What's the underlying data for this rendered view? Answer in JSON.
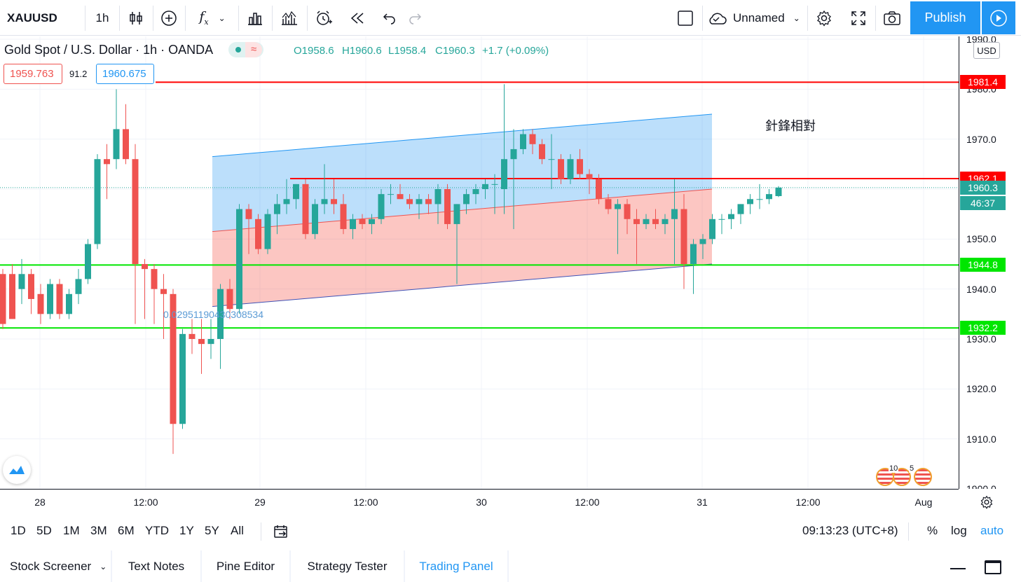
{
  "toolbar": {
    "symbol": "XAUUSD",
    "interval": "1h",
    "layout_name": "Unnamed",
    "publish_label": "Publish"
  },
  "legend": {
    "title": "Gold Spot / U.S. Dollar · 1h · OANDA",
    "open": "O1958.6",
    "high": "H1960.6",
    "low": "L1958.4",
    "close": "C1960.3",
    "change": "+1.7 (+0.09%)"
  },
  "order": {
    "sell_price": "1959.763",
    "spread": "91.2",
    "buy_price": "1960.675"
  },
  "annotations": {
    "chinese_note": "針鋒相對",
    "channel_label": "0.02951190430308534"
  },
  "colors": {
    "up": "#26a69a",
    "down": "#ef5350",
    "resistance": "#ff0000",
    "support": "#00e600",
    "accent": "#2196f3"
  },
  "chart_data": {
    "type": "candlestick",
    "y_range": [
      1900,
      1990
    ],
    "y_ticks": [
      "1990.0",
      "1980.0",
      "1970.0",
      "1960.0",
      "1950.0",
      "1940.0",
      "1930.0",
      "1920.0",
      "1910.0",
      "1900.0"
    ],
    "x_ticks": [
      "28",
      "12:00",
      "29",
      "12:00",
      "30",
      "12:00",
      "31",
      "12:00",
      "Aug"
    ],
    "horizontal_lines": [
      {
        "price": 1981.4,
        "label": "1981.4",
        "color": "#ff0000"
      },
      {
        "price": 1962.1,
        "label": "1962.1",
        "color": "#ff0000"
      },
      {
        "price": 1944.8,
        "label": "1944.8",
        "color": "#00e600"
      },
      {
        "price": 1932.2,
        "label": "1932.2",
        "color": "#00e600"
      }
    ],
    "current_price": {
      "label": "1960.3",
      "countdown": "46:37"
    },
    "candles": [
      {
        "o": 1943,
        "h": 1944,
        "l": 1932,
        "c": 1933
      },
      {
        "o": 1943,
        "h": 1945,
        "l": 1934,
        "c": 1934
      },
      {
        "o": 1940,
        "h": 1946,
        "l": 1937,
        "c": 1943
      },
      {
        "o": 1943,
        "h": 1944,
        "l": 1935,
        "c": 1938
      },
      {
        "o": 1939,
        "h": 1941,
        "l": 1933,
        "c": 1935
      },
      {
        "o": 1935,
        "h": 1942,
        "l": 1934,
        "c": 1941
      },
      {
        "o": 1941,
        "h": 1942,
        "l": 1934,
        "c": 1935
      },
      {
        "o": 1935,
        "h": 1940,
        "l": 1934,
        "c": 1939
      },
      {
        "o": 1939,
        "h": 1944,
        "l": 1937,
        "c": 1942
      },
      {
        "o": 1942,
        "h": 1950,
        "l": 1941,
        "c": 1949
      },
      {
        "o": 1949,
        "h": 1967,
        "l": 1948,
        "c": 1966
      },
      {
        "o": 1966,
        "h": 1969,
        "l": 1958,
        "c": 1965
      },
      {
        "o": 1966,
        "h": 1980,
        "l": 1964,
        "c": 1972
      },
      {
        "o": 1972,
        "h": 1977,
        "l": 1965,
        "c": 1966
      },
      {
        "o": 1966,
        "h": 1969,
        "l": 1933,
        "c": 1945
      },
      {
        "o": 1945,
        "h": 1946,
        "l": 1934,
        "c": 1944
      },
      {
        "o": 1944,
        "h": 1945,
        "l": 1933,
        "c": 1940
      },
      {
        "o": 1940,
        "h": 1943,
        "l": 1930,
        "c": 1939
      },
      {
        "o": 1939,
        "h": 1940,
        "l": 1907,
        "c": 1913
      },
      {
        "o": 1913,
        "h": 1932,
        "l": 1912,
        "c": 1931
      },
      {
        "o": 1931,
        "h": 1934,
        "l": 1927,
        "c": 1930
      },
      {
        "o": 1930,
        "h": 1934,
        "l": 1923,
        "c": 1929
      },
      {
        "o": 1929,
        "h": 1934,
        "l": 1926,
        "c": 1930
      },
      {
        "o": 1930,
        "h": 1941,
        "l": 1924,
        "c": 1940
      },
      {
        "o": 1940,
        "h": 1942,
        "l": 1934,
        "c": 1936
      },
      {
        "o": 1936,
        "h": 1957,
        "l": 1935,
        "c": 1956
      },
      {
        "o": 1956,
        "h": 1957,
        "l": 1947,
        "c": 1954
      },
      {
        "o": 1954,
        "h": 1955,
        "l": 1947,
        "c": 1948
      },
      {
        "o": 1948,
        "h": 1956,
        "l": 1947,
        "c": 1955
      },
      {
        "o": 1955,
        "h": 1959,
        "l": 1951,
        "c": 1957
      },
      {
        "o": 1957,
        "h": 1962,
        "l": 1955,
        "c": 1958
      },
      {
        "o": 1958,
        "h": 1961,
        "l": 1956,
        "c": 1961
      },
      {
        "o": 1961,
        "h": 1962,
        "l": 1950,
        "c": 1951
      },
      {
        "o": 1951,
        "h": 1958,
        "l": 1950,
        "c": 1957
      },
      {
        "o": 1957,
        "h": 1965,
        "l": 1955,
        "c": 1958
      },
      {
        "o": 1958,
        "h": 1962,
        "l": 1955,
        "c": 1957
      },
      {
        "o": 1957,
        "h": 1959,
        "l": 1951,
        "c": 1952
      },
      {
        "o": 1952,
        "h": 1955,
        "l": 1950,
        "c": 1954
      },
      {
        "o": 1954,
        "h": 1955,
        "l": 1952,
        "c": 1953
      },
      {
        "o": 1953,
        "h": 1955,
        "l": 1951,
        "c": 1954
      },
      {
        "o": 1954,
        "h": 1960,
        "l": 1953,
        "c": 1959
      },
      {
        "o": 1959,
        "h": 1961,
        "l": 1957,
        "c": 1959
      },
      {
        "o": 1959,
        "h": 1961,
        "l": 1958,
        "c": 1958
      },
      {
        "o": 1958,
        "h": 1959,
        "l": 1956,
        "c": 1957
      },
      {
        "o": 1957,
        "h": 1959,
        "l": 1954,
        "c": 1958
      },
      {
        "o": 1958,
        "h": 1959,
        "l": 1955,
        "c": 1957
      },
      {
        "o": 1957,
        "h": 1961,
        "l": 1953,
        "c": 1960
      },
      {
        "o": 1960,
        "h": 1961,
        "l": 1952,
        "c": 1953
      },
      {
        "o": 1953,
        "h": 1957,
        "l": 1941,
        "c": 1957
      },
      {
        "o": 1957,
        "h": 1960,
        "l": 1955,
        "c": 1959
      },
      {
        "o": 1959,
        "h": 1961,
        "l": 1957,
        "c": 1960
      },
      {
        "o": 1960,
        "h": 1962,
        "l": 1958,
        "c": 1961
      },
      {
        "o": 1961,
        "h": 1963,
        "l": 1955,
        "c": 1961
      },
      {
        "o": 1960,
        "h": 1981,
        "l": 1955,
        "c": 1966
      },
      {
        "o": 1966,
        "h": 1972,
        "l": 1952,
        "c": 1968
      },
      {
        "o": 1968,
        "h": 1972,
        "l": 1967,
        "c": 1971
      },
      {
        "o": 1971,
        "h": 1972,
        "l": 1967,
        "c": 1969
      },
      {
        "o": 1969,
        "h": 1970,
        "l": 1965,
        "c": 1966
      },
      {
        "o": 1966,
        "h": 1971,
        "l": 1960,
        "c": 1966
      },
      {
        "o": 1966,
        "h": 1967,
        "l": 1961,
        "c": 1962
      },
      {
        "o": 1962,
        "h": 1967,
        "l": 1961,
        "c": 1966
      },
      {
        "o": 1966,
        "h": 1968,
        "l": 1962,
        "c": 1963
      },
      {
        "o": 1963,
        "h": 1964,
        "l": 1959,
        "c": 1962
      },
      {
        "o": 1962,
        "h": 1963,
        "l": 1957,
        "c": 1958
      },
      {
        "o": 1958,
        "h": 1959,
        "l": 1955,
        "c": 1956
      },
      {
        "o": 1956,
        "h": 1958,
        "l": 1947,
        "c": 1957
      },
      {
        "o": 1957,
        "h": 1958,
        "l": 1951,
        "c": 1954
      },
      {
        "o": 1954,
        "h": 1956,
        "l": 1945,
        "c": 1953
      },
      {
        "o": 1953,
        "h": 1955,
        "l": 1952,
        "c": 1954
      },
      {
        "o": 1954,
        "h": 1956,
        "l": 1952,
        "c": 1953
      },
      {
        "o": 1953,
        "h": 1955,
        "l": 1951,
        "c": 1954
      },
      {
        "o": 1954,
        "h": 1962,
        "l": 1945,
        "c": 1956
      },
      {
        "o": 1956,
        "h": 1959,
        "l": 1940,
        "c": 1945
      },
      {
        "o": 1945,
        "h": 1950,
        "l": 1939,
        "c": 1949
      },
      {
        "o": 1949,
        "h": 1951,
        "l": 1946,
        "c": 1950
      },
      {
        "o": 1950,
        "h": 1955,
        "l": 1949,
        "c": 1954
      },
      {
        "o": 1954,
        "h": 1955,
        "l": 1951,
        "c": 1954
      },
      {
        "o": 1954,
        "h": 1956,
        "l": 1952,
        "c": 1955
      },
      {
        "o": 1955,
        "h": 1957,
        "l": 1953,
        "c": 1957
      },
      {
        "o": 1957,
        "h": 1959,
        "l": 1955,
        "c": 1958
      },
      {
        "o": 1958,
        "h": 1961,
        "l": 1956,
        "c": 1958
      },
      {
        "o": 1958,
        "h": 1960,
        "l": 1957,
        "c": 1959
      },
      {
        "o": 1958.6,
        "h": 1960.6,
        "l": 1958.4,
        "c": 1960.3
      }
    ]
  },
  "price_axis": {
    "currency": "USD"
  },
  "range_bar": {
    "ranges": [
      "1D",
      "5D",
      "1M",
      "3M",
      "6M",
      "YTD",
      "1Y",
      "5Y",
      "All"
    ],
    "clock": "09:13:23 (UTC+8)",
    "percent": "%",
    "log": "log",
    "auto": "auto"
  },
  "bottom_tabs": [
    "Stock Screener",
    "Text Notes",
    "Pine Editor",
    "Strategy Tester",
    "Trading Panel"
  ],
  "events": {
    "count_a": "10",
    "count_b": "5"
  }
}
